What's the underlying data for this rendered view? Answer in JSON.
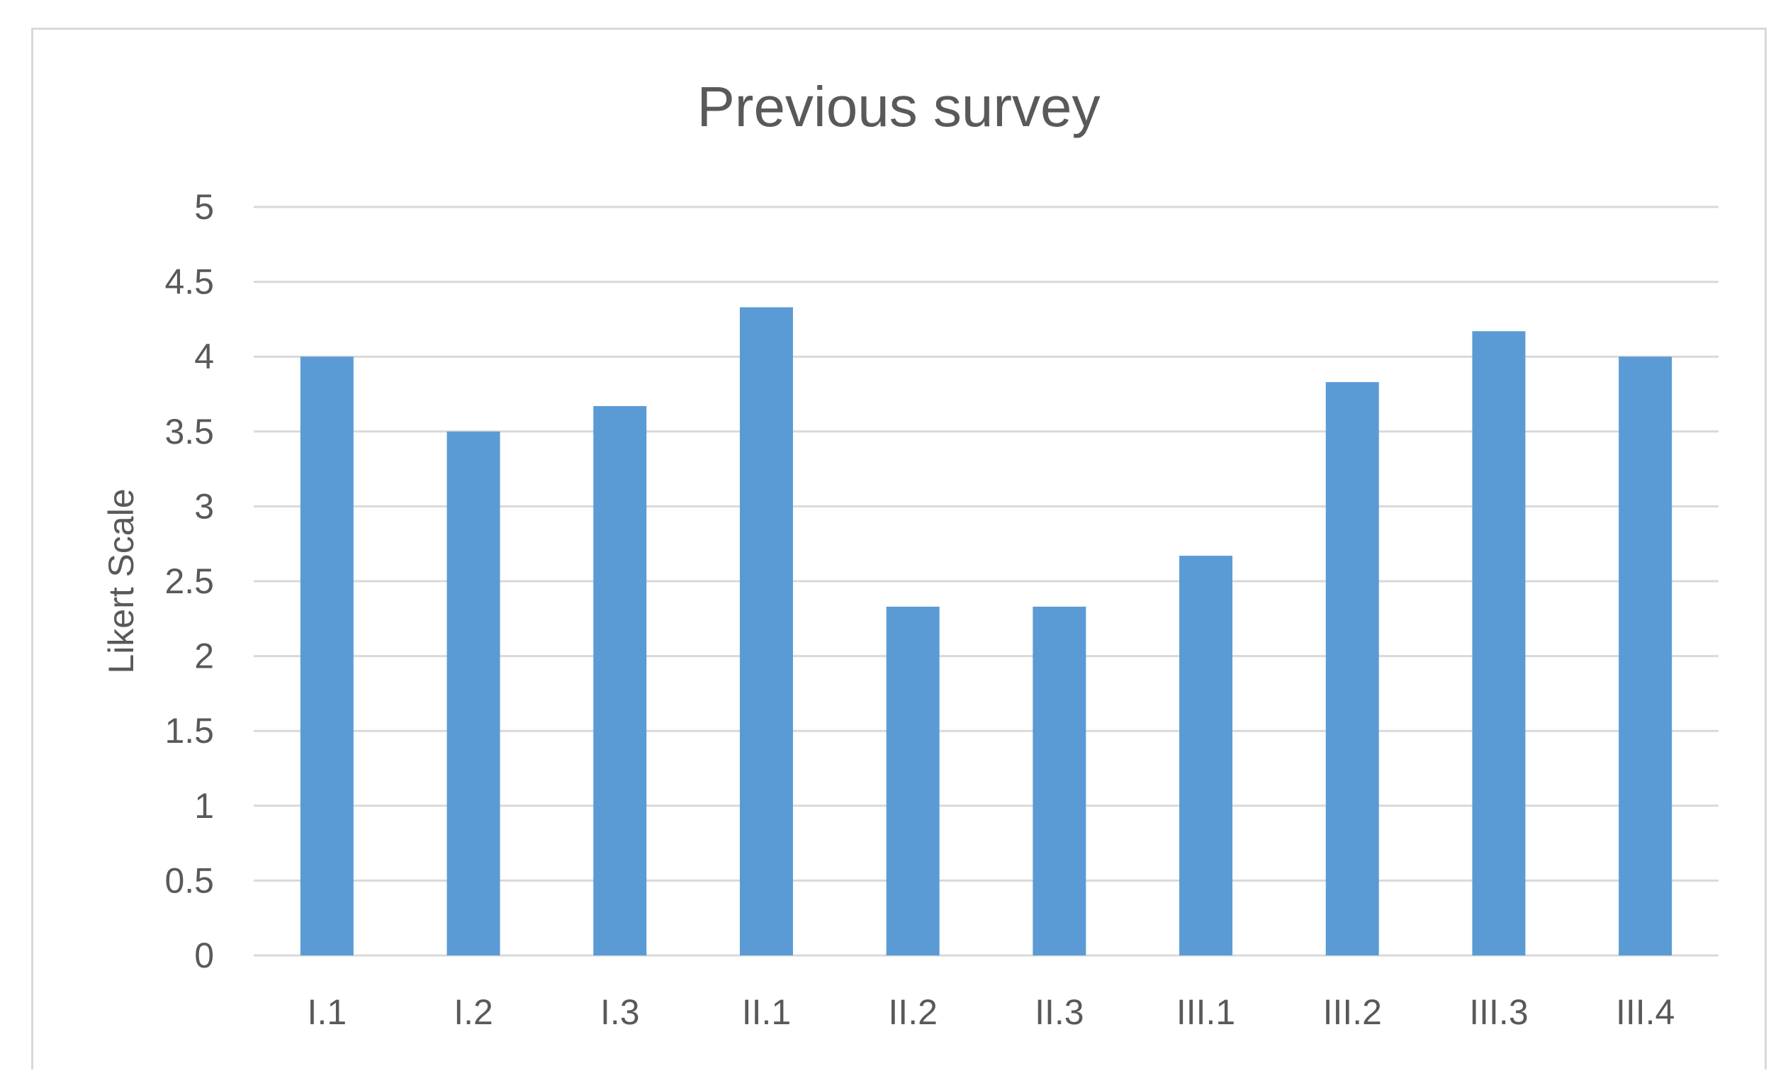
{
  "chart_data": {
    "type": "bar",
    "title": "Previous survey",
    "xlabel": "",
    "ylabel": "Likert Scale",
    "categories": [
      "I.1",
      "I.2",
      "I.3",
      "II.1",
      "II.2",
      "II.3",
      "III.1",
      "III.2",
      "III.3",
      "III.4"
    ],
    "values": [
      4.0,
      3.5,
      3.67,
      4.33,
      2.33,
      2.33,
      2.67,
      3.83,
      4.17,
      4.0
    ],
    "ylim": [
      0,
      5
    ],
    "yticks": [
      "0",
      "0.5",
      "1",
      "1.5",
      "2",
      "2.5",
      "3",
      "3.5",
      "4",
      "4.5",
      "5"
    ],
    "grid": true,
    "legend": "none",
    "bar_color": "#5b9bd5"
  }
}
